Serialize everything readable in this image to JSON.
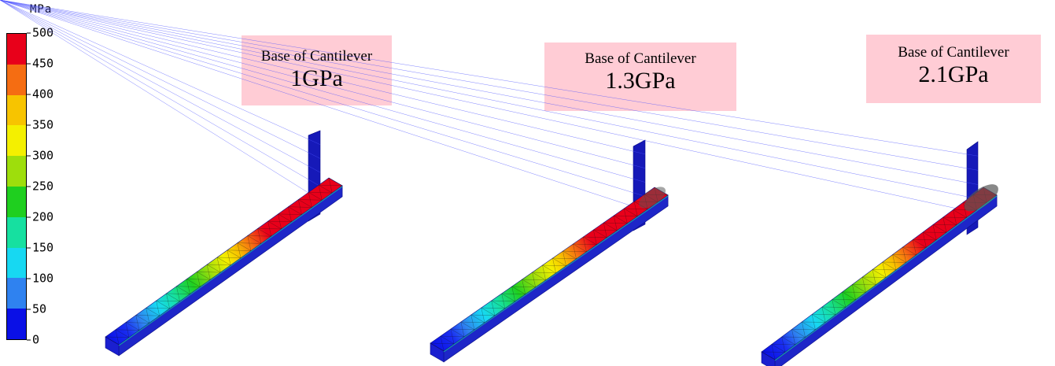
{
  "legend": {
    "unit": "MPa",
    "ticks": [
      "500",
      "450",
      "400",
      "350",
      "300",
      "250",
      "200",
      "150",
      "100",
      "50",
      "0"
    ],
    "bands": [
      "#e8001a",
      "#f56d12",
      "#f7c400",
      "#f4f000",
      "#9ede0c",
      "#1fcf1f",
      "#16e0a0",
      "#17d8f2",
      "#2f82f0",
      "#0a10e6"
    ]
  },
  "models": [
    {
      "title": "Base of Cantilever",
      "value": "1GPa"
    },
    {
      "title": "Base of Cantilever",
      "value": "1.3GPa"
    },
    {
      "title": "Base of Cantilever",
      "value": "2.1GPa"
    }
  ],
  "colors": {
    "label_background": "#ffccd5",
    "support_block": "#1b1dd6",
    "beam_side": "#1e26c8"
  }
}
